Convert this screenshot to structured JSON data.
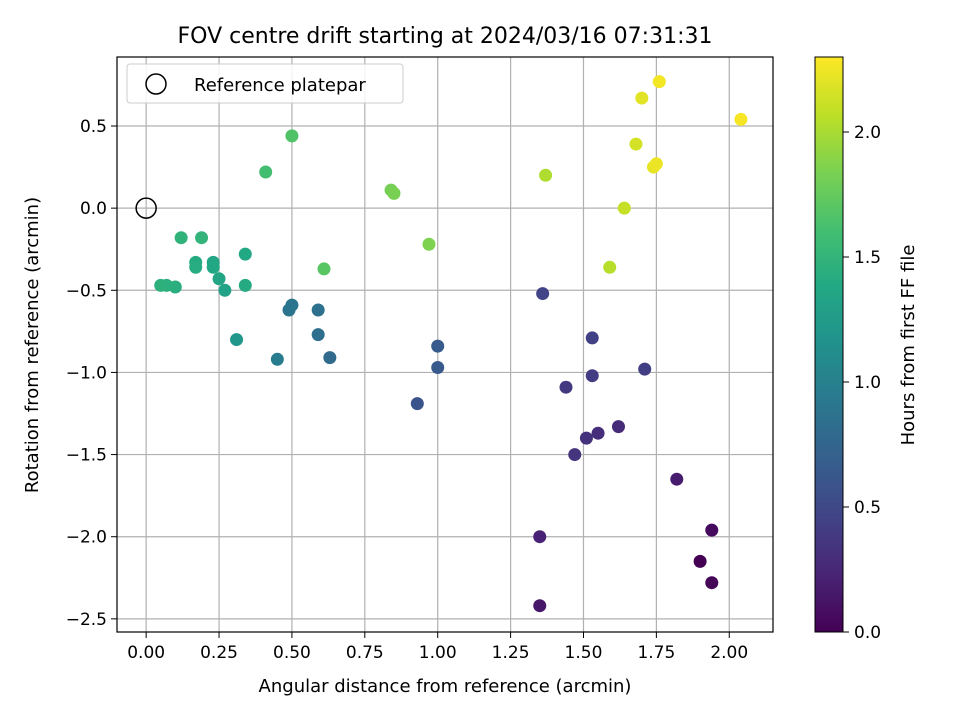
{
  "chart_data": {
    "type": "scatter",
    "title": "FOV centre drift starting at 2024/03/16 07:31:31",
    "xlabel": "Angular distance from reference (arcmin)",
    "ylabel": "Rotation from reference (arcmin)",
    "xlim": [
      -0.1,
      2.15
    ],
    "ylim": [
      -2.58,
      0.92
    ],
    "x_ticks": [
      0,
      0.25,
      0.5,
      0.75,
      1.0,
      1.25,
      1.5,
      1.75,
      2.0
    ],
    "x_tick_labels": [
      "0.00",
      "0.25",
      "0.50",
      "0.75",
      "1.00",
      "1.25",
      "1.50",
      "1.75",
      "2.00"
    ],
    "y_ticks": [
      0.5,
      0.0,
      -0.5,
      -1.0,
      -1.5,
      -2.0,
      -2.5
    ],
    "y_tick_labels": [
      "0.5",
      "0.0",
      "−0.5",
      "−1.0",
      "−1.5",
      "−2.0",
      "−2.5"
    ],
    "grid": true,
    "legend": {
      "placement": "top-left",
      "label": "Reference platepar",
      "marker": "open-circle"
    },
    "reference_point": {
      "x": 0.0,
      "y": 0.0
    },
    "colorbar": {
      "label": "Hours from first FF file",
      "colormap": "viridis",
      "range": [
        0.0,
        2.3
      ],
      "ticks": [
        0.0,
        0.5,
        1.0,
        1.5,
        2.0
      ],
      "tick_labels": [
        "0.0",
        "0.5",
        "1.0",
        "1.5",
        "2.0"
      ]
    },
    "points": [
      {
        "x": 1.9,
        "y": -2.15,
        "t": 0.0
      },
      {
        "x": 1.94,
        "y": -2.28,
        "t": 0.03
      },
      {
        "x": 1.94,
        "y": -1.96,
        "t": 0.06
      },
      {
        "x": 1.35,
        "y": -2.42,
        "t": 0.15
      },
      {
        "x": 1.82,
        "y": -1.65,
        "t": 0.18
      },
      {
        "x": 1.35,
        "y": -2.0,
        "t": 0.22
      },
      {
        "x": 1.62,
        "y": -1.33,
        "t": 0.28
      },
      {
        "x": 1.55,
        "y": -1.37,
        "t": 0.3
      },
      {
        "x": 1.51,
        "y": -1.4,
        "t": 0.33
      },
      {
        "x": 1.47,
        "y": -1.5,
        "t": 0.35
      },
      {
        "x": 1.44,
        "y": -1.09,
        "t": 0.38
      },
      {
        "x": 1.53,
        "y": -1.02,
        "t": 0.4
      },
      {
        "x": 1.71,
        "y": -0.98,
        "t": 0.42
      },
      {
        "x": 1.53,
        "y": -0.79,
        "t": 0.44
      },
      {
        "x": 1.36,
        "y": -0.52,
        "t": 0.46
      },
      {
        "x": 0.93,
        "y": -1.19,
        "t": 0.6
      },
      {
        "x": 1.0,
        "y": -0.97,
        "t": 0.64
      },
      {
        "x": 1.0,
        "y": -0.84,
        "t": 0.66
      },
      {
        "x": 0.63,
        "y": -0.91,
        "t": 0.8
      },
      {
        "x": 0.59,
        "y": -0.77,
        "t": 0.84
      },
      {
        "x": 0.59,
        "y": -0.62,
        "t": 0.86
      },
      {
        "x": 0.49,
        "y": -0.62,
        "t": 0.88
      },
      {
        "x": 0.5,
        "y": -0.59,
        "t": 0.9
      },
      {
        "x": 0.45,
        "y": -0.92,
        "t": 0.96
      },
      {
        "x": 0.31,
        "y": -0.8,
        "t": 1.2
      },
      {
        "x": 0.27,
        "y": -0.5,
        "t": 1.32
      },
      {
        "x": 0.25,
        "y": -0.43,
        "t": 1.34
      },
      {
        "x": 0.23,
        "y": -0.33,
        "t": 1.36
      },
      {
        "x": 0.23,
        "y": -0.36,
        "t": 1.37
      },
      {
        "x": 0.34,
        "y": -0.28,
        "t": 1.38
      },
      {
        "x": 0.34,
        "y": -0.47,
        "t": 1.4
      },
      {
        "x": 0.17,
        "y": -0.33,
        "t": 1.41
      },
      {
        "x": 0.17,
        "y": -0.36,
        "t": 1.42
      },
      {
        "x": 0.1,
        "y": -0.48,
        "t": 1.44
      },
      {
        "x": 0.07,
        "y": -0.47,
        "t": 1.45
      },
      {
        "x": 0.05,
        "y": -0.47,
        "t": 1.46
      },
      {
        "x": 0.12,
        "y": -0.18,
        "t": 1.48
      },
      {
        "x": 0.19,
        "y": -0.18,
        "t": 1.5
      },
      {
        "x": 0.41,
        "y": 0.22,
        "t": 1.6
      },
      {
        "x": 0.5,
        "y": 0.44,
        "t": 1.66
      },
      {
        "x": 0.61,
        "y": -0.37,
        "t": 1.7
      },
      {
        "x": 0.84,
        "y": 0.11,
        "t": 1.82
      },
      {
        "x": 0.85,
        "y": 0.09,
        "t": 1.83
      },
      {
        "x": 0.97,
        "y": -0.22,
        "t": 1.85
      },
      {
        "x": 1.37,
        "y": 0.2,
        "t": 2.02
      },
      {
        "x": 1.59,
        "y": -0.36,
        "t": 2.05
      },
      {
        "x": 1.64,
        "y": 0.0,
        "t": 2.1
      },
      {
        "x": 1.68,
        "y": 0.39,
        "t": 2.15
      },
      {
        "x": 1.7,
        "y": 0.67,
        "t": 2.2
      },
      {
        "x": 1.74,
        "y": 0.25,
        "t": 2.22
      },
      {
        "x": 1.75,
        "y": 0.27,
        "t": 2.24
      },
      {
        "x": 1.76,
        "y": 0.77,
        "t": 2.26
      },
      {
        "x": 2.04,
        "y": 0.54,
        "t": 2.28
      }
    ]
  }
}
